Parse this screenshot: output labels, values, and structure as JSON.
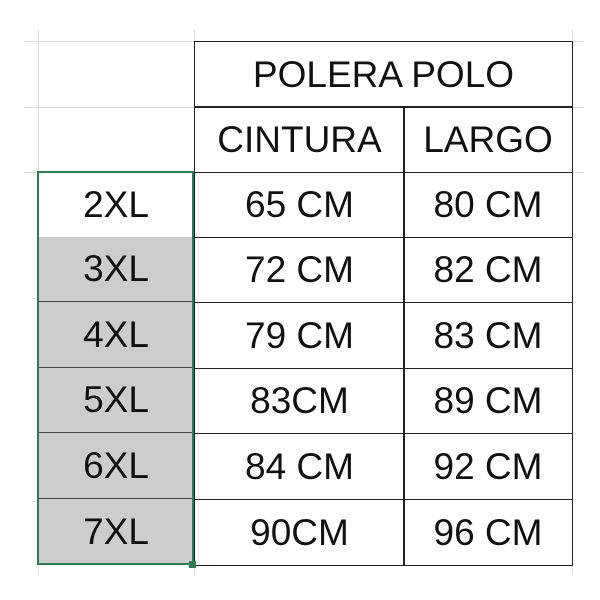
{
  "table": {
    "title": "POLERA POLO",
    "headers": [
      "CINTURA",
      "LARGO"
    ],
    "rows": [
      {
        "size": "2XL",
        "cintura": "65 CM",
        "largo": "80 CM"
      },
      {
        "size": "3XL",
        "cintura": "72 CM",
        "largo": "82 CM"
      },
      {
        "size": "4XL",
        "cintura": "79 CM",
        "largo": "83 CM"
      },
      {
        "size": "5XL",
        "cintura": "83CM",
        "largo": "89 CM"
      },
      {
        "size": "6XL",
        "cintura": "84 CM",
        "largo": "92 CM"
      },
      {
        "size": "7XL",
        "cintura": "90CM",
        "largo": "96 CM"
      }
    ]
  },
  "colors": {
    "selection": "#2f7a55",
    "selected_fill": "#cdcdcd"
  }
}
